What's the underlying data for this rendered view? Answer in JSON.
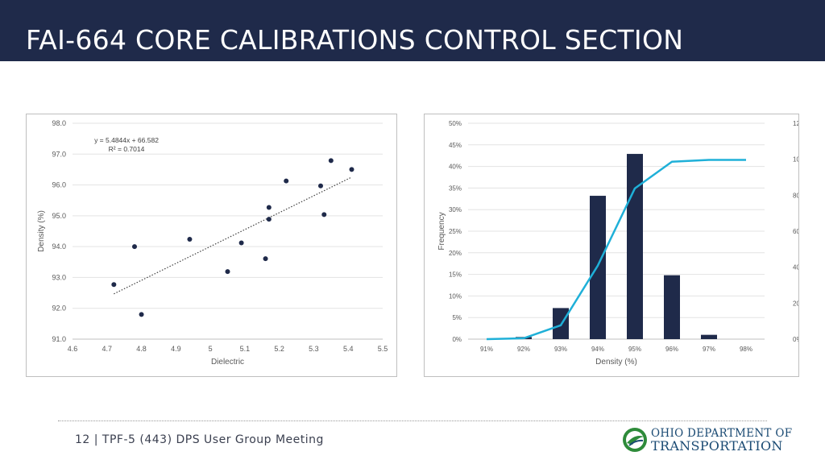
{
  "slide": {
    "title": "FAI-664 CORE CALIBRATIONS CONTROL SECTION",
    "footer": "12 | TPF-5 (443) DPS User Group Meeting",
    "logo": {
      "line1": "OHIO DEPARTMENT OF",
      "line2": "TRANSPORTATION",
      "icon": "odot-logo-icon"
    },
    "colors": {
      "title_bar": "#1f2a4a",
      "bar_fill": "#1f2a4a",
      "line": "#1fb0d8",
      "point": "#1f2a4a"
    }
  },
  "chart_data": [
    {
      "type": "scatter",
      "xlabel": "Dielectric",
      "ylabel": "Density (%)",
      "xlim": [
        4.6,
        5.5
      ],
      "ylim": [
        91.0,
        98.0
      ],
      "x_ticks": [
        "4.6",
        "4.7",
        "4.8",
        "4.9",
        "5",
        "5.1",
        "5.2",
        "5.3",
        "5.4",
        "5.5"
      ],
      "y_ticks": [
        "91.0",
        "92.0",
        "93.0",
        "94.0",
        "95.0",
        "96.0",
        "97.0",
        "98.0"
      ],
      "grid": "horizontal",
      "points": [
        {
          "x": 4.72,
          "y": 92.77
        },
        {
          "x": 4.78,
          "y": 94.0
        },
        {
          "x": 4.8,
          "y": 91.8
        },
        {
          "x": 4.94,
          "y": 94.24
        },
        {
          "x": 5.05,
          "y": 93.19
        },
        {
          "x": 5.09,
          "y": 94.12
        },
        {
          "x": 5.16,
          "y": 93.61
        },
        {
          "x": 5.17,
          "y": 94.89
        },
        {
          "x": 5.17,
          "y": 95.27
        },
        {
          "x": 5.22,
          "y": 96.13
        },
        {
          "x": 5.32,
          "y": 95.97
        },
        {
          "x": 5.33,
          "y": 95.04
        },
        {
          "x": 5.35,
          "y": 96.79
        },
        {
          "x": 5.41,
          "y": 96.5
        }
      ],
      "trendline": {
        "style": "dotted",
        "x_range": [
          4.72,
          5.41
        ],
        "slope": 5.4844,
        "intercept": 66.582,
        "equation": "y = 5.4844x + 66.582",
        "r2_label": "R² = 0.7014"
      }
    },
    {
      "type": "bar",
      "xlabel": "Density (%)",
      "ylabel": "Frequency",
      "categories": [
        "91%",
        "92%",
        "93%",
        "94%",
        "95%",
        "96%",
        "97%",
        "98%"
      ],
      "y_ticks": [
        "0%",
        "5%",
        "10%",
        "15%",
        "20%",
        "25%",
        "30%",
        "35%",
        "40%",
        "45%",
        "50%"
      ],
      "y2_ticks": [
        "0%",
        "20%",
        "40%",
        "60%",
        "80%",
        "100%",
        "120%"
      ],
      "ylim": [
        0,
        50
      ],
      "y2lim": [
        0,
        120
      ],
      "grid": "horizontal",
      "series": [
        {
          "values": [
            0,
            0.5,
            7.2,
            33.2,
            42.9,
            14.8,
            1.0,
            0
          ]
        },
        {
          "axis": "secondary",
          "values": [
            0,
            0.5,
            7.7,
            40.9,
            83.8,
            98.6,
            99.6,
            99.6
          ]
        }
      ]
    }
  ]
}
